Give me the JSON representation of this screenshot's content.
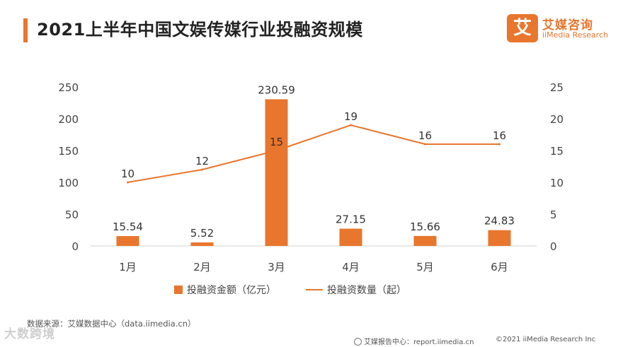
{
  "header": {
    "title": "2021上半年中国文娱传媒行业投融资规模"
  },
  "brand": {
    "mark": "艾",
    "name": "艾媒咨询",
    "sub": "iiMedia Research",
    "color": "#e8762d"
  },
  "chart_data": {
    "type": "bar",
    "categories": [
      "1月",
      "2月",
      "3月",
      "4月",
      "5月",
      "6月"
    ],
    "series": [
      {
        "name": "投融资金额（亿元）",
        "type": "bar",
        "axis": "left",
        "color": "#e8762d",
        "values": [
          15.54,
          5.52,
          230.59,
          27.15,
          15.66,
          24.83
        ],
        "labels": [
          "15.54",
          "5.52",
          "230.59",
          "27.15",
          "15.66",
          "24.83"
        ]
      },
      {
        "name": "投融资数量（起）",
        "type": "line",
        "axis": "right",
        "color": "#e8762d",
        "values": [
          10,
          12,
          15,
          19,
          16,
          16
        ],
        "labels": [
          "10",
          "12",
          "15",
          "19",
          "16",
          "16"
        ]
      }
    ],
    "ylim": [
      0,
      250
    ],
    "yticks": [
      "0",
      "50",
      "100",
      "150",
      "200",
      "250"
    ],
    "y2lim": [
      0,
      25
    ],
    "y2ticks": [
      "0",
      "5",
      "10",
      "15",
      "20",
      "25"
    ],
    "grid": false,
    "legend_position": "bottom"
  },
  "footer": {
    "source": "数据来源：艾媒数据中心（data.iimedia.cn）",
    "report": "艾媒报告中心：report.iimedia.cn",
    "copyright": "©2021  iiMedia Research  Inc"
  },
  "watermark": "大数跨境"
}
